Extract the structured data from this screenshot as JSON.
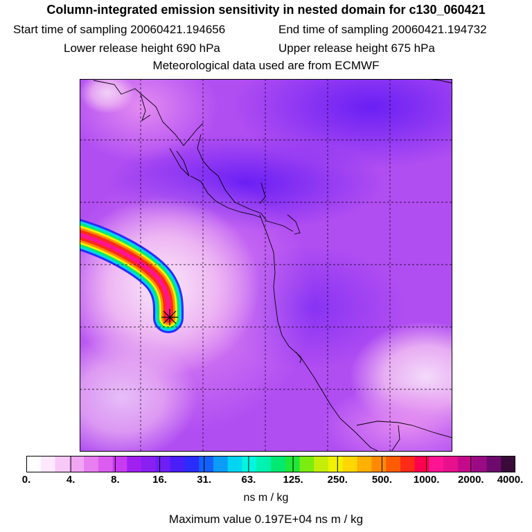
{
  "header": {
    "title": "Column-integrated emission sensitivity in nested domain for c130_060421",
    "start": "Start time of sampling 20060421.194656",
    "end": "End time of sampling 20060421.194732",
    "lower": "Lower release height  690 hPa",
    "upper": "Upper release height  675 hPa",
    "met": "Meteorological data used are from ECMWF"
  },
  "colorbar": {
    "colors": [
      "#ffffff",
      "#fde8fd",
      "#f7c9f7",
      "#f0a6f2",
      "#e77ff0",
      "#dd5cf0",
      "#c93bf2",
      "#a020f0",
      "#8a1ff2",
      "#6f1ff5",
      "#4a1ef8",
      "#2a2cfb",
      "#1560fb",
      "#0a9cf7",
      "#00d6f2",
      "#00f7e0",
      "#00f2b0",
      "#00ea72",
      "#20e838",
      "#7cec10",
      "#c4ee08",
      "#f2f200",
      "#ffd600",
      "#ffb000",
      "#ff8a00",
      "#ff5c00",
      "#ff2a18",
      "#ff0050",
      "#ff1493",
      "#e8108c",
      "#c40a8a",
      "#9a0a84",
      "#6e0a6e",
      "#3a0a3a"
    ],
    "ticks": [
      "0.",
      "4.",
      "8.",
      "16.",
      "31.",
      "63.",
      "125.",
      "250.",
      "500.",
      "1000.",
      "2000.",
      "4000."
    ],
    "units": "ns m / kg"
  },
  "footer": {
    "max": "Maximum value  0.197E+04 ns m / kg"
  },
  "map": {
    "background": "#b04cf2",
    "release_marker": "star-marker"
  }
}
